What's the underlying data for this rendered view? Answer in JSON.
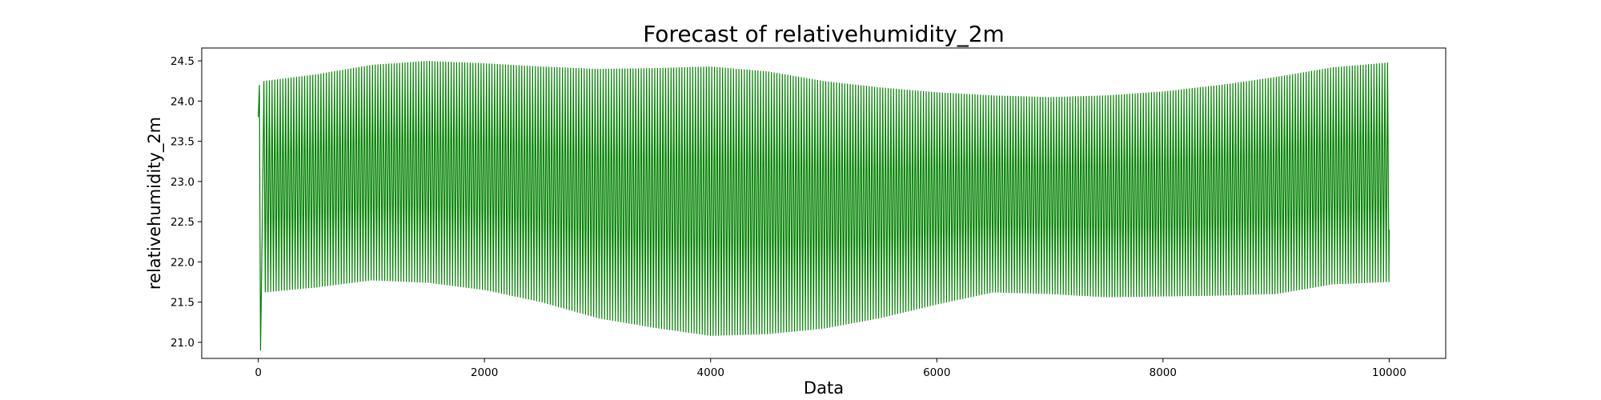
{
  "chart_data": {
    "type": "line",
    "title": "Forecast of relativehumidity_2m",
    "xlabel": "Data",
    "ylabel": "relativehumidity_2m",
    "xlim": [
      -500,
      10500
    ],
    "ylim": [
      20.8,
      24.66
    ],
    "xticks": [
      0,
      2000,
      4000,
      6000,
      8000,
      10000
    ],
    "xtick_labels": [
      "0",
      "2000",
      "4000",
      "6000",
      "8000",
      "10000"
    ],
    "yticks": [
      21.0,
      21.5,
      22.0,
      22.5,
      23.0,
      23.5,
      24.0,
      24.5
    ],
    "ytick_labels": [
      "21.0",
      "21.5",
      "22.0",
      "22.5",
      "23.0",
      "23.5",
      "24.0",
      "24.5"
    ],
    "grid": false,
    "line_color": "#008000",
    "series": [
      {
        "start_points": [
          [
            0,
            23.8
          ],
          [
            10,
            24.2
          ],
          [
            20,
            20.9
          ],
          [
            35,
            22.4
          ]
        ],
        "period": 24,
        "x_end": 10000,
        "upper_envelope": [
          [
            50,
            24.25
          ],
          [
            500,
            24.33
          ],
          [
            1000,
            24.45
          ],
          [
            1500,
            24.5
          ],
          [
            2000,
            24.47
          ],
          [
            2500,
            24.43
          ],
          [
            3000,
            24.4
          ],
          [
            3500,
            24.41
          ],
          [
            4000,
            24.43
          ],
          [
            4500,
            24.37
          ],
          [
            5000,
            24.25
          ],
          [
            5500,
            24.17
          ],
          [
            6000,
            24.11
          ],
          [
            6500,
            24.07
          ],
          [
            7000,
            24.05
          ],
          [
            7500,
            24.07
          ],
          [
            8000,
            24.12
          ],
          [
            8500,
            24.2
          ],
          [
            9000,
            24.3
          ],
          [
            9500,
            24.42
          ],
          [
            10000,
            24.48
          ]
        ],
        "lower_envelope": [
          [
            50,
            21.62
          ],
          [
            500,
            21.68
          ],
          [
            1000,
            21.77
          ],
          [
            1500,
            21.74
          ],
          [
            2000,
            21.65
          ],
          [
            2500,
            21.5
          ],
          [
            3000,
            21.3
          ],
          [
            3500,
            21.18
          ],
          [
            4000,
            21.08
          ],
          [
            4500,
            21.1
          ],
          [
            5000,
            21.17
          ],
          [
            5500,
            21.3
          ],
          [
            6000,
            21.47
          ],
          [
            6500,
            21.62
          ],
          [
            7000,
            21.6
          ],
          [
            7500,
            21.56
          ],
          [
            8000,
            21.57
          ],
          [
            8500,
            21.58
          ],
          [
            9000,
            21.6
          ],
          [
            9500,
            21.72
          ],
          [
            10000,
            21.75
          ]
        ],
        "end_value": 22.4
      }
    ]
  }
}
